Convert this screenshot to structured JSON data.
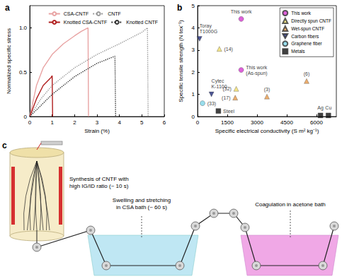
{
  "chart_data": [
    {
      "type": "line",
      "panel_label": "a",
      "x_label": "Strain (%)",
      "y_label": "Normalized specific stress",
      "xlim": [
        0,
        6
      ],
      "xticks": [
        0,
        1,
        2,
        3,
        4,
        5,
        6
      ],
      "ylim": [
        0,
        1.25
      ],
      "yticks": [
        0,
        0.5,
        {
          "value": 1,
          "label": "1.0"
        }
      ],
      "grid": false,
      "legend": "top-right",
      "series": [
        {
          "name": "CSA-CNTF",
          "color": "#e8a3a3",
          "line_style": "solid",
          "x": [
            0,
            0.3,
            0.6,
            1.0,
            1.5,
            2.0,
            2.3,
            2.6,
            2.62
          ],
          "values": [
            0,
            0.35,
            0.55,
            0.7,
            0.82,
            0.91,
            0.96,
            1.0,
            0
          ]
        },
        {
          "name": "CNTF",
          "color": "#9a9a9a",
          "line_style": "dotted",
          "x": [
            0,
            0.5,
            1,
            2,
            3,
            4,
            5,
            5.25,
            5.28
          ],
          "values": [
            0,
            0.2,
            0.35,
            0.55,
            0.7,
            0.82,
            0.95,
            1.0,
            0
          ]
        },
        {
          "name": "Knotted CSA-CNTF",
          "color": "#b01e1e",
          "line_style": "solid",
          "x": [
            0,
            0.3,
            0.6,
            0.95,
            1.0,
            1.02
          ],
          "values": [
            0,
            0.2,
            0.35,
            0.44,
            0.46,
            0
          ]
        },
        {
          "name": "Knotted CNTF",
          "color": "#333333",
          "line_style": "dotted",
          "x": [
            0,
            1,
            2,
            3,
            3.8,
            3.83
          ],
          "values": [
            0,
            0.25,
            0.45,
            0.6,
            0.68,
            0
          ]
        }
      ]
    },
    {
      "type": "scatter",
      "panel_label": "b",
      "x_label": "Specific electrical conductivity (S m² kg⁻¹)",
      "y_label": "Specific tensile strength (N tex⁻¹)",
      "xlim": [
        0,
        7000
      ],
      "xticks": [
        0,
        1500,
        3000,
        4500,
        6000
      ],
      "ylim": [
        0,
        5
      ],
      "yticks": [
        0,
        1,
        2,
        3,
        4,
        5
      ],
      "grid": false,
      "legend": "top-right",
      "series": [
        {
          "name": "This work",
          "color": "#d63ad0",
          "marker": "circle",
          "x": [
            2200,
            2200
          ],
          "values": [
            4.4,
            2.1
          ],
          "labels": [
            "This work",
            "This work\n(As-spun)"
          ]
        },
        {
          "name": "Directly spun CNTF",
          "color": "#f2df6a",
          "marker": "triangle",
          "x": [
            1100,
            1950
          ],
          "values": [
            3.05,
            1.25
          ],
          "labels": [
            "(14)",
            "(32)"
          ]
        },
        {
          "name": "Wet-spun CNTF",
          "color": "#e89a4a",
          "marker": "triangle",
          "x": [
            1900,
            3500,
            5500
          ],
          "values": [
            0.85,
            0.9,
            1.6
          ],
          "labels": [
            "(17)",
            "(3)",
            "(6)"
          ]
        },
        {
          "name": "Carbon fibers",
          "color": "#1f2a78",
          "marker": "triangle_down",
          "x": [
            100,
            700
          ],
          "values": [
            3.5,
            1.0
          ],
          "labels": [
            "Toray\nT1000G",
            "Cytec\nK-1100"
          ]
        },
        {
          "name": "Graphene fiber",
          "color": "#7fd6e8",
          "marker": "circle",
          "x": [
            250
          ],
          "values": [
            0.6
          ],
          "labels": [
            "(33)"
          ]
        },
        {
          "name": "Metals",
          "color": "#111111",
          "marker": "square",
          "x": [
            1050,
            6200,
            6600
          ],
          "values": [
            0.25,
            0.05,
            0.05
          ],
          "labels": [
            "Steel",
            "Ag",
            "Cu"
          ]
        }
      ]
    }
  ],
  "diagram": {
    "panel_label": "c",
    "steps": [
      {
        "lines": [
          "Synthesis of CNTF with",
          "high IG/ID ratio (~ 10 s)"
        ]
      },
      {
        "lines": [
          "Swelling and stretching",
          "in CSA bath (~ 60 s)"
        ]
      },
      {
        "lines": [
          "Coagulation in acetone bath"
        ]
      }
    ]
  }
}
